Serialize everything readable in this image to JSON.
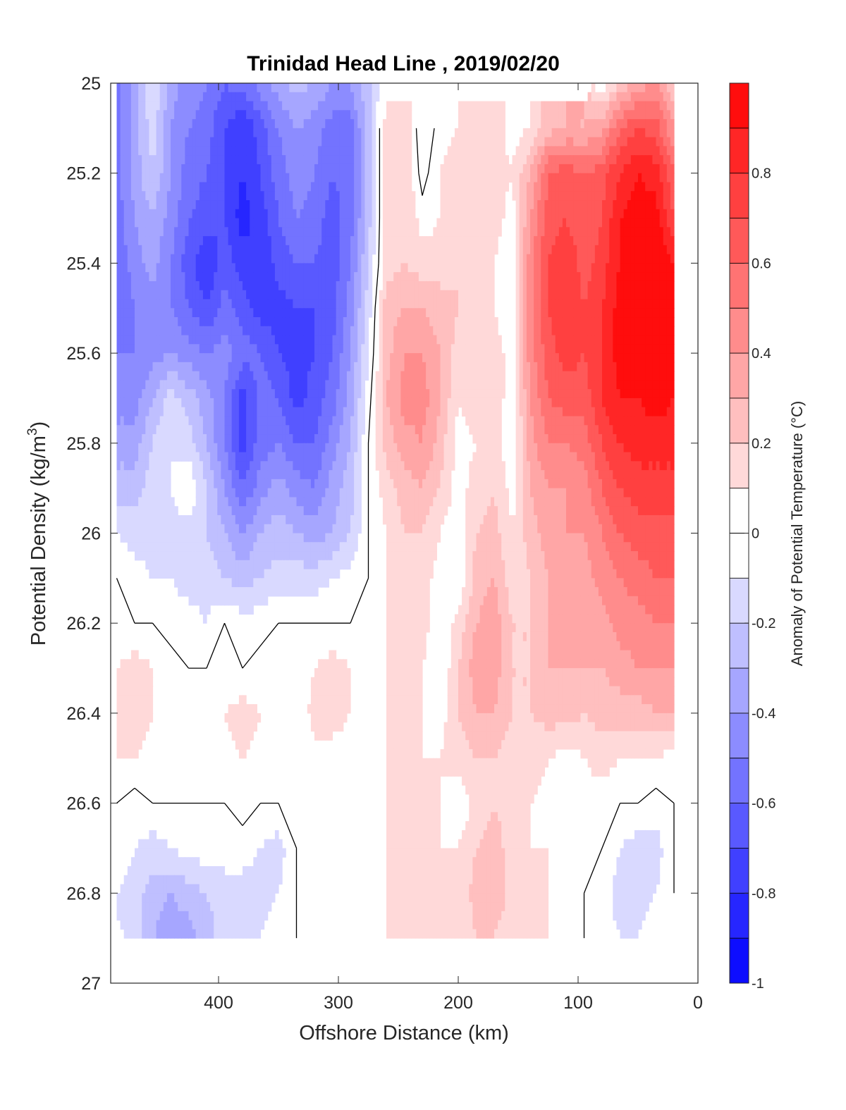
{
  "chart_data": {
    "type": "heatmap",
    "title": "Trinidad Head Line , 2019/02/20",
    "xlabel": "Offshore Distance (km)",
    "ylabel_main": "Potential Density (kg/m",
    "ylabel_sup": "3",
    "ylabel_close": ")",
    "colorbar_label": "Anomaly of Potential Temperature (°C)",
    "xlim": [
      490,
      0
    ],
    "ylim": [
      25,
      27
    ],
    "y_reversed": true,
    "x_ticks": [
      400,
      300,
      200,
      100,
      0
    ],
    "x_tick_labels": [
      "400",
      "300",
      "200",
      "100",
      "0"
    ],
    "y_ticks": [
      25,
      25.2,
      25.4,
      25.6,
      25.8,
      26,
      26.2,
      26.4,
      26.6,
      26.8,
      27
    ],
    "y_tick_labels": [
      "25",
      "25.2",
      "25.4",
      "25.6",
      "25.8",
      "26",
      "26.2",
      "26.4",
      "26.6",
      "26.8",
      "27"
    ],
    "colorbar_ticks": [
      0.8,
      0.6,
      0.4,
      0.2,
      0,
      -0.2,
      -0.4,
      -0.6,
      -0.8,
      -1
    ],
    "colorbar_tick_labels": [
      "0.8",
      "0.6",
      "0.4",
      "0.2",
      "0",
      "-0.2",
      "-0.4",
      "-0.6",
      "-0.8",
      "-1"
    ],
    "colorbar_range": [
      -1,
      1
    ],
    "colorbar_levels": 20,
    "colormap": "blue-white-red",
    "color_min": "#0000ff",
    "color_max": "#ff0000",
    "zero_contour": "black line",
    "x_columns": [
      485,
      470,
      455,
      440,
      425,
      410,
      395,
      380,
      365,
      350,
      335,
      320,
      305,
      290,
      275,
      260,
      245,
      230,
      215,
      200,
      185,
      170,
      155,
      140,
      125,
      110,
      95,
      80,
      65,
      50,
      35,
      20
    ],
    "density_rows": [
      25.0,
      25.1,
      25.2,
      25.3,
      25.4,
      25.5,
      25.6,
      25.7,
      25.8,
      25.9,
      26.0,
      26.1,
      26.2,
      26.3,
      26.4,
      26.5,
      26.6,
      26.7,
      26.8,
      26.9
    ],
    "anomaly_grid": [
      [
        -0.55,
        -0.35,
        -0.1,
        -0.35,
        -0.45,
        -0.5,
        -0.6,
        -0.55,
        -0.45,
        -0.35,
        -0.25,
        -0.3,
        -0.4,
        -0.4,
        -0.2,
        null,
        null,
        null,
        null,
        null,
        null,
        null,
        null,
        null,
        null,
        null,
        null,
        0.05,
        0.2,
        0.35,
        0.4,
        0.2
      ],
      [
        -0.55,
        -0.35,
        -0.15,
        -0.4,
        -0.5,
        -0.55,
        -0.7,
        -0.8,
        -0.65,
        -0.5,
        -0.4,
        -0.45,
        -0.55,
        -0.55,
        -0.25,
        0.15,
        0.2,
        -0.1,
        0.05,
        0.1,
        0.15,
        0.15,
        0.05,
        0.1,
        0.25,
        0.3,
        0.3,
        0.35,
        0.6,
        0.7,
        0.65,
        0.4
      ],
      [
        -0.55,
        -0.35,
        -0.2,
        -0.4,
        -0.55,
        -0.6,
        -0.7,
        -0.8,
        -0.7,
        -0.55,
        -0.45,
        -0.5,
        -0.6,
        -0.55,
        -0.25,
        0.15,
        0.2,
        -0.05,
        0.1,
        0.15,
        0.15,
        0.15,
        0.1,
        0.3,
        0.6,
        0.65,
        0.6,
        0.65,
        0.8,
        0.9,
        0.85,
        0.6
      ],
      [
        -0.55,
        -0.4,
        -0.3,
        -0.45,
        -0.6,
        -0.65,
        -0.7,
        -0.85,
        -0.75,
        -0.6,
        -0.5,
        -0.55,
        -0.65,
        -0.55,
        -0.25,
        0.15,
        0.2,
        0.05,
        0.1,
        0.15,
        0.15,
        0.15,
        0.05,
        0.4,
        0.65,
        0.7,
        0.6,
        0.7,
        0.9,
        0.95,
        0.95,
        0.7
      ],
      [
        -0.6,
        -0.45,
        -0.35,
        -0.5,
        -0.65,
        -0.8,
        -0.65,
        -0.75,
        -0.8,
        -0.65,
        -0.6,
        -0.6,
        -0.65,
        -0.5,
        -0.2,
        0.15,
        0.2,
        0.15,
        0.15,
        0.2,
        0.15,
        0.1,
        0.0,
        0.45,
        0.7,
        0.8,
        0.65,
        0.75,
        0.9,
        1.0,
        1.0,
        0.9
      ],
      [
        -0.6,
        -0.5,
        -0.45,
        -0.5,
        -0.6,
        -0.7,
        -0.55,
        -0.65,
        -0.75,
        -0.75,
        -0.7,
        -0.7,
        -0.65,
        -0.45,
        -0.15,
        0.25,
        0.3,
        0.3,
        0.25,
        0.2,
        0.15,
        0.1,
        0.0,
        0.45,
        0.7,
        0.8,
        0.7,
        0.8,
        0.95,
        1.0,
        1.0,
        0.95
      ],
      [
        -0.5,
        -0.5,
        -0.45,
        -0.4,
        -0.45,
        -0.5,
        -0.45,
        -0.55,
        -0.6,
        -0.7,
        -0.75,
        -0.7,
        -0.6,
        -0.4,
        -0.1,
        0.25,
        0.4,
        0.4,
        0.3,
        0.15,
        0.15,
        0.15,
        0.05,
        0.45,
        0.65,
        0.75,
        0.7,
        0.8,
        0.95,
        0.95,
        0.95,
        0.95
      ],
      [
        -0.45,
        -0.45,
        -0.3,
        -0.15,
        -0.25,
        -0.35,
        -0.5,
        -0.75,
        -0.55,
        -0.6,
        -0.75,
        -0.65,
        -0.55,
        -0.35,
        -0.05,
        0.3,
        0.45,
        0.45,
        0.3,
        0.1,
        0.15,
        0.15,
        0.05,
        0.4,
        0.6,
        0.65,
        0.65,
        0.8,
        0.9,
        0.9,
        0.95,
        0.9
      ],
      [
        -0.35,
        -0.35,
        -0.2,
        -0.1,
        -0.15,
        -0.3,
        -0.5,
        -0.75,
        -0.55,
        -0.5,
        -0.6,
        -0.6,
        -0.45,
        -0.3,
        0.0,
        0.25,
        0.35,
        0.4,
        0.25,
        0.05,
        0.1,
        0.15,
        0.0,
        0.35,
        0.5,
        0.5,
        0.55,
        0.7,
        0.8,
        0.85,
        0.85,
        0.85
      ],
      [
        -0.25,
        -0.25,
        -0.15,
        -0.1,
        0.0,
        -0.2,
        -0.4,
        -0.6,
        -0.45,
        -0.35,
        -0.45,
        -0.5,
        -0.35,
        -0.25,
        0.0,
        0.15,
        0.25,
        0.3,
        0.2,
        0.05,
        0.15,
        0.2,
        0.05,
        0.3,
        0.4,
        0.4,
        0.45,
        0.6,
        0.7,
        0.75,
        0.75,
        0.75
      ],
      [
        -0.1,
        -0.15,
        -0.15,
        -0.15,
        -0.15,
        -0.2,
        -0.3,
        -0.4,
        -0.3,
        -0.25,
        -0.3,
        -0.35,
        -0.3,
        -0.2,
        0.0,
        0.1,
        0.2,
        0.2,
        0.1,
        0.0,
        0.2,
        0.25,
        0.1,
        0.25,
        0.35,
        0.4,
        0.4,
        0.5,
        0.6,
        0.65,
        0.65,
        0.65
      ],
      [
        0.0,
        -0.05,
        -0.1,
        -0.1,
        -0.15,
        -0.15,
        -0.2,
        -0.25,
        -0.2,
        -0.15,
        -0.15,
        -0.15,
        -0.1,
        -0.05,
        0.0,
        0.1,
        0.15,
        0.15,
        0.05,
        0.0,
        0.25,
        0.3,
        0.15,
        0.2,
        0.3,
        0.35,
        0.35,
        0.45,
        0.5,
        0.55,
        0.6,
        0.6
      ],
      [
        0.05,
        0.0,
        0.0,
        -0.05,
        -0.05,
        -0.1,
        0.0,
        -0.05,
        -0.05,
        0.0,
        0.0,
        0.0,
        0.0,
        0.0,
        0.0,
        0.1,
        0.1,
        0.15,
        0.0,
        0.15,
        0.3,
        0.35,
        0.2,
        0.2,
        0.3,
        0.35,
        0.3,
        0.35,
        0.45,
        0.45,
        0.5,
        0.5
      ],
      [
        0.1,
        0.15,
        0.1,
        0.05,
        0.0,
        0.0,
        0.05,
        0.0,
        0.05,
        0.05,
        0.0,
        0.1,
        0.15,
        0.1,
        0.05,
        0.1,
        0.1,
        0.1,
        0.0,
        0.2,
        0.35,
        0.35,
        0.2,
        0.2,
        0.3,
        0.3,
        0.3,
        0.3,
        0.35,
        0.4,
        0.4,
        0.4
      ],
      [
        0.1,
        0.15,
        0.1,
        0.05,
        0.0,
        0.0,
        0.1,
        0.15,
        0.1,
        0.05,
        0.0,
        0.15,
        0.15,
        0.1,
        0.05,
        0.1,
        0.1,
        0.1,
        0.05,
        0.2,
        0.3,
        0.3,
        0.2,
        0.2,
        0.25,
        0.25,
        0.2,
        0.25,
        0.25,
        0.25,
        0.3,
        0.3
      ],
      [
        0.1,
        0.1,
        0.05,
        0.0,
        0.0,
        0.0,
        0.05,
        0.1,
        0.05,
        0.0,
        0.0,
        0.05,
        0.05,
        0.05,
        0.05,
        0.1,
        0.1,
        0.1,
        0.1,
        0.15,
        0.2,
        0.2,
        0.15,
        0.15,
        0.1,
        0.05,
        0.1,
        0.15,
        0.1,
        0.1,
        0.1,
        0.05
      ],
      [
        0.0,
        -0.05,
        0.0,
        0.0,
        0.0,
        0.0,
        0.0,
        0.05,
        0.0,
        0.0,
        0.0,
        0.0,
        0.0,
        0.0,
        0.0,
        0.1,
        0.1,
        0.1,
        0.1,
        0.0,
        0.15,
        0.2,
        0.15,
        0.1,
        0.05,
        0.0,
        0.05,
        0.05,
        0.0,
        0.0,
        -0.05,
        0.0
      ],
      [
        -0.05,
        -0.1,
        -0.15,
        -0.1,
        -0.05,
        -0.05,
        -0.05,
        -0.05,
        -0.1,
        -0.15,
        0.0,
        0.0,
        0.0,
        0.0,
        0.0,
        0.1,
        0.1,
        0.1,
        0.1,
        0.1,
        0.2,
        0.25,
        0.15,
        0.1,
        0.1,
        0.05,
        0.0,
        0.0,
        -0.1,
        -0.15,
        -0.15,
        0.0
      ],
      [
        -0.1,
        -0.15,
        -0.25,
        -0.3,
        -0.25,
        -0.2,
        -0.15,
        -0.15,
        -0.15,
        -0.1,
        0.0,
        0.0,
        0.1,
        0.05,
        0.0,
        0.1,
        0.1,
        0.1,
        0.1,
        0.1,
        0.25,
        0.3,
        0.15,
        0.1,
        0.1,
        0.05,
        0.0,
        -0.05,
        -0.15,
        -0.15,
        -0.1,
        0.0
      ],
      [
        null,
        -0.15,
        -0.3,
        -0.35,
        -0.35,
        -0.25,
        -0.15,
        -0.15,
        -0.1,
        -0.05,
        0.0,
        0.0,
        0.05,
        0.0,
        0.0,
        0.1,
        0.1,
        0.1,
        0.1,
        0.1,
        0.2,
        0.2,
        0.1,
        0.1,
        0.1,
        0.05,
        0.0,
        -0.05,
        -0.1,
        -0.1,
        0.0,
        null
      ]
    ]
  }
}
